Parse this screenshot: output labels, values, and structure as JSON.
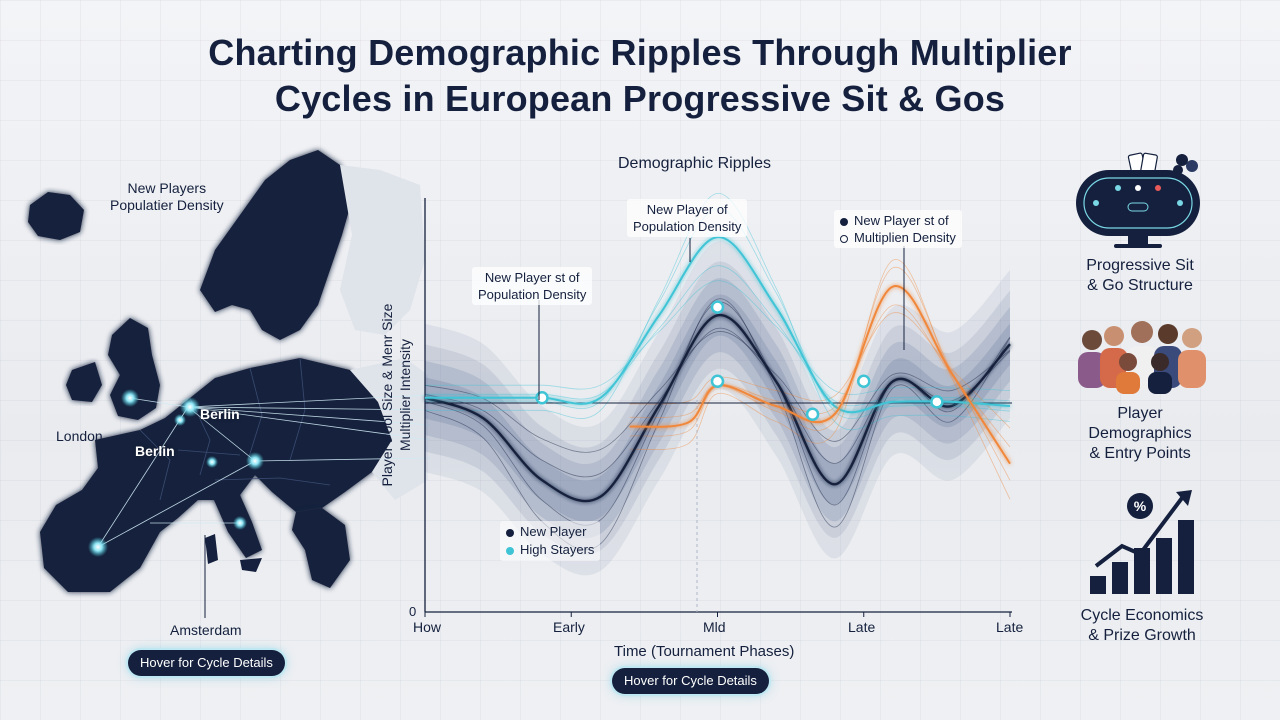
{
  "title_line1": "Charting Demographic Ripples Through Multiplier",
  "title_line2": "Cycles in European Progressive Sit & Gos",
  "map": {
    "density_label_line1": "New Players",
    "density_label_line2": "Populatier Density",
    "city_labels": [
      "Berlin",
      "London",
      "Berlin",
      "Amsterdam"
    ],
    "hover_button": "Hover for Cycle Details"
  },
  "chart": {
    "heading": "Demographic Ripples",
    "callout_left_line1": "New Player st of",
    "callout_left_line2": "Population Density",
    "callout_top_line1": "New Player of",
    "callout_top_line2": "Population Density",
    "callout_right_line1": "New Player st of",
    "callout_right_line2": "Multiplien Density",
    "legend_new_player": "New Player",
    "legend_high_stayers": "High Stayers",
    "hover_button": "Hover for Cycle Details"
  },
  "chart_data": {
    "type": "line",
    "title": "Demographic Ripples",
    "xlabel": "Time (Tournament Phases)",
    "ylabel_line1": "Player Pool Size & Menr Size",
    "ylabel_line2": "Multiplier Intensity",
    "y_origin_label": "0",
    "x_tick_labels": [
      "How",
      "Early",
      "Mld",
      "Late",
      "Late"
    ],
    "x_tick_positions": [
      0,
      1,
      2,
      3,
      4
    ],
    "xlim": [
      0,
      4
    ],
    "ylim": [
      0,
      10
    ],
    "grid": false,
    "legend_position": "bottom-left",
    "series": [
      {
        "name": "New Player",
        "color": "#14203d",
        "x": [
          0,
          0.4,
          0.8,
          1.2,
          1.6,
          2.0,
          2.4,
          2.8,
          3.2,
          3.6,
          4.0
        ],
        "y": [
          5.2,
          4.7,
          3.2,
          2.8,
          5.0,
          7.2,
          5.6,
          3.1,
          5.6,
          5.0,
          6.5
        ]
      },
      {
        "name": "High Stayers",
        "color": "#3fc4d6",
        "x": [
          0,
          0.4,
          0.8,
          1.2,
          1.6,
          2.0,
          2.4,
          2.8,
          3.2,
          3.6,
          4.0
        ],
        "y": [
          5.2,
          5.2,
          5.2,
          5.2,
          7.2,
          9.1,
          7.4,
          5.0,
          5.1,
          5.1,
          5.0
        ]
      },
      {
        "color": "#f0873a",
        "x": [
          1.4,
          1.8,
          2.0,
          2.4,
          2.8,
          3.2,
          3.6,
          4.0
        ],
        "y": [
          4.5,
          4.6,
          5.5,
          5.0,
          4.8,
          7.9,
          5.8,
          3.6
        ]
      }
    ],
    "highlighted_points": [
      {
        "x": 0.8,
        "y": 5.2
      },
      {
        "x": 2.0,
        "y": 7.4
      },
      {
        "x": 2.0,
        "y": 5.6
      },
      {
        "x": 2.65,
        "y": 4.8
      },
      {
        "x": 3.0,
        "y": 5.6
      },
      {
        "x": 3.5,
        "y": 5.1
      }
    ]
  },
  "sidebar": {
    "items": [
      {
        "label_line1": "Progressive Sit",
        "label_line2": "& Go Structure",
        "icon": "poker-table-icon"
      },
      {
        "label_line1": "Player",
        "label_line2": "Demographics",
        "label_line3": "& Entry Points",
        "icon": "people-group-icon"
      },
      {
        "label_line1": "Cycle Economics",
        "label_line2": "& Prize Growth",
        "icon": "growth-chart-icon",
        "badge": "%"
      }
    ]
  },
  "colors": {
    "navy": "#14203d",
    "teal": "#3fc4d6",
    "orange": "#f0873a",
    "band": "#7e8fae"
  }
}
